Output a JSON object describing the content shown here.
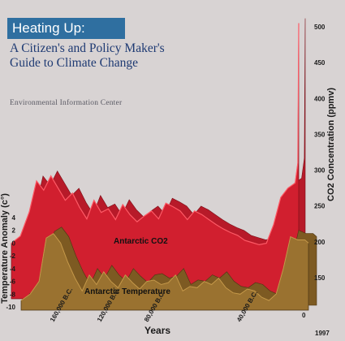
{
  "cover": {
    "title": "Heating Up:",
    "subtitle_line1": "A Citizen's and Policy Maker's",
    "subtitle_line2": "Guide to Climate Change",
    "publisher": "Environmental Information Center"
  },
  "colors": {
    "background": "#d8d3d3",
    "title_box": "#2f6fa0",
    "co2_fill": "#d11f2f",
    "co2_edge": "#7a0f18",
    "temp_fill": "#9a7230",
    "temp_edge": "#4b3413"
  },
  "chart_data": {
    "type": "area",
    "xlabel": "Years",
    "x_ticks": [
      "160,000 B.C.",
      "120,000 B.C.",
      "80,000 B.C.",
      "40,000 B.C.",
      "0",
      "1997"
    ],
    "left_axis": {
      "label": "Temperature Anomaly (c°)",
      "ticks": [
        4,
        2,
        0,
        -2,
        -4,
        -6,
        -8,
        -10
      ],
      "ylim": [
        -10,
        4
      ]
    },
    "right_axis": {
      "label": "CO2 Concentration (ppmv)",
      "ticks": [
        500,
        450,
        400,
        350,
        300,
        250,
        200,
        150
      ],
      "ylim": [
        150,
        500
      ]
    },
    "series": [
      {
        "name": "Antarctic CO2",
        "axis": "right",
        "x": [
          160000,
          155000,
          150000,
          146000,
          142000,
          138000,
          134000,
          130000,
          126000,
          122000,
          118000,
          114000,
          110000,
          106000,
          102000,
          98000,
          94000,
          90000,
          86000,
          82000,
          78000,
          74000,
          70000,
          66000,
          62000,
          58000,
          54000,
          50000,
          46000,
          42000,
          38000,
          34000,
          30000,
          26000,
          22000,
          18000,
          14000,
          10000,
          6000,
          2000,
          500,
          0
        ],
        "values": [
          198,
          208,
          242,
          285,
          272,
          292,
          275,
          258,
          268,
          248,
          232,
          258,
          241,
          246,
          231,
          252,
          238,
          228,
          236,
          243,
          232,
          254,
          249,
          243,
          231,
          243,
          238,
          231,
          224,
          218,
          213,
          209,
          202,
          199,
          196,
          198,
          224,
          262,
          275,
          282,
          310,
          505
        ]
      },
      {
        "name": "Antarctic Temperature",
        "axis": "left",
        "x": [
          160000,
          155000,
          150000,
          146000,
          142000,
          138000,
          134000,
          130000,
          126000,
          122000,
          118000,
          114000,
          110000,
          106000,
          102000,
          98000,
          94000,
          90000,
          86000,
          82000,
          78000,
          74000,
          70000,
          66000,
          62000,
          58000,
          54000,
          50000,
          46000,
          42000,
          38000,
          34000,
          30000,
          26000,
          22000,
          18000,
          14000,
          10000,
          6000,
          2000,
          0
        ],
        "values": [
          -9,
          -8,
          -6,
          0.8,
          1.5,
          0,
          -3,
          -5.5,
          -7.5,
          -5,
          -6.5,
          -4.5,
          -6,
          -7,
          -5,
          -6.2,
          -7.2,
          -6,
          -5.8,
          -6.5,
          -6.2,
          -5,
          -7.5,
          -6.8,
          -7,
          -6,
          -6.5,
          -5.5,
          -7,
          -7.8,
          -8,
          -7.2,
          -7.5,
          -8.5,
          -9,
          -8,
          -4,
          1,
          0.5,
          0.5,
          0
        ]
      }
    ]
  }
}
